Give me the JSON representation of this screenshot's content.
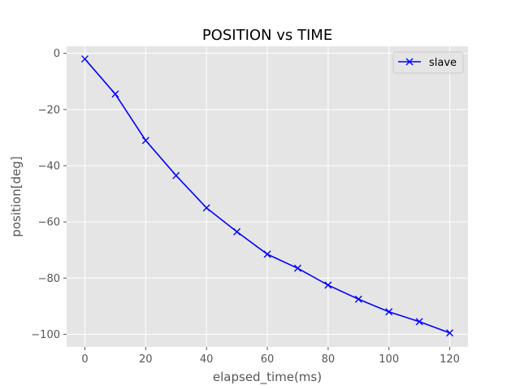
{
  "chart_data": {
    "type": "line",
    "title": "POSITION vs TIME",
    "xlabel": "elapsed_time(ms)",
    "ylabel": "position[deg]",
    "xlim": [
      -6,
      126
    ],
    "ylim": [
      -104.5,
      2.5
    ],
    "xticks": [
      0,
      20,
      40,
      60,
      80,
      100,
      120
    ],
    "yticks": [
      0,
      -20,
      -40,
      -60,
      -80,
      -100
    ],
    "grid": true,
    "legend_position": "top-right",
    "series": [
      {
        "name": "slave",
        "color": "#0000ff",
        "marker": "x",
        "x": [
          0,
          10,
          20,
          30,
          40,
          50,
          60,
          70,
          80,
          90,
          100,
          110,
          120
        ],
        "y": [
          -2,
          -14.5,
          -31,
          -43.5,
          -55,
          -63.5,
          -71.5,
          -76.5,
          -82.5,
          -87.5,
          -92,
          -95.5,
          -99.5
        ]
      }
    ]
  }
}
